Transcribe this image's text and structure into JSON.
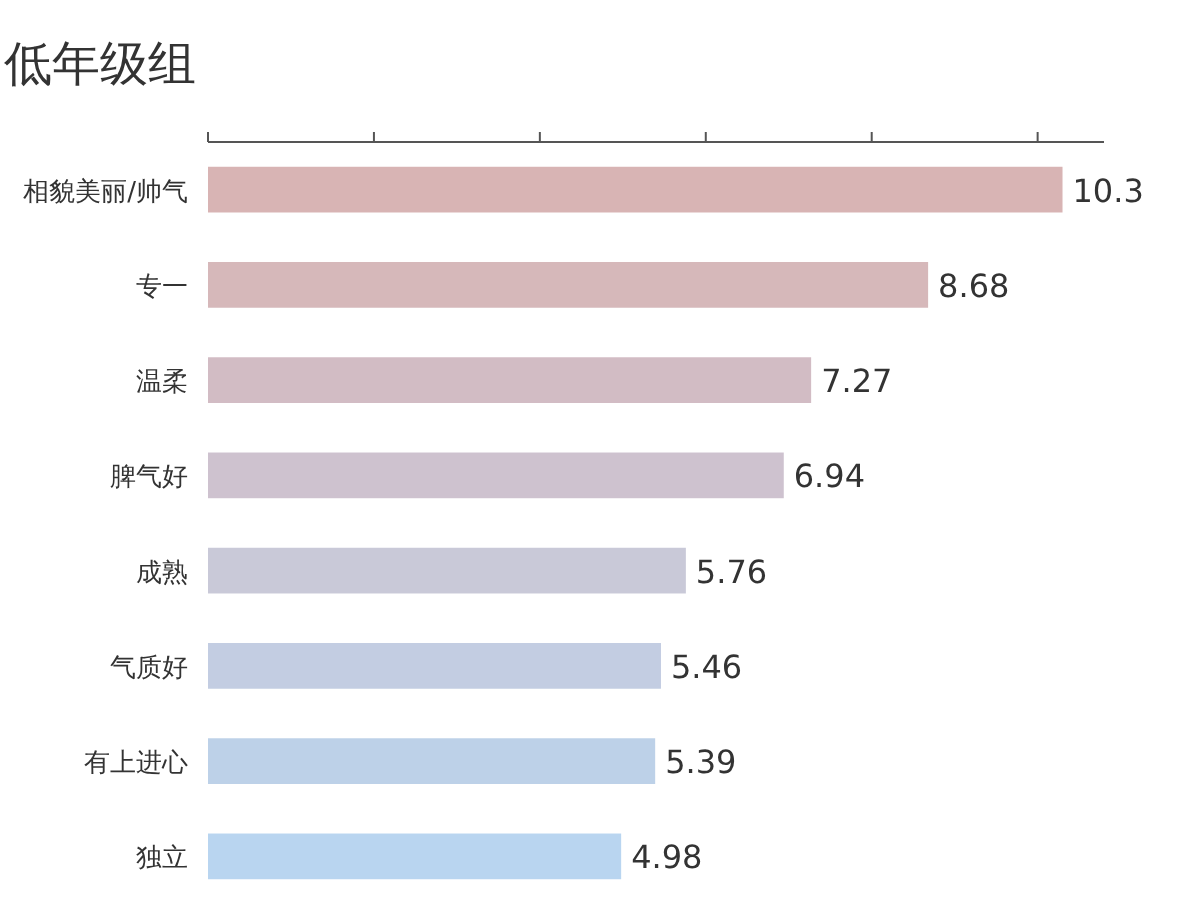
{
  "chart_data": {
    "type": "bar",
    "orientation": "horizontal",
    "title": "低年级组",
    "categories": [
      "相貌美丽/帅气",
      "专一",
      "温柔",
      "脾气好",
      "成熟",
      "气质好",
      "有上进心",
      "独立"
    ],
    "values": [
      10.3,
      8.68,
      7.27,
      6.94,
      5.76,
      5.46,
      5.39,
      4.98
    ],
    "colors": [
      "#d8b4b4",
      "#d6b8ba",
      "#d2bcc4",
      "#cec2cf",
      "#c9c9d8",
      "#c3cde2",
      "#bdd1e8",
      "#b9d5f0"
    ],
    "xlim": [
      0,
      10.8
    ],
    "xticks": [
      {
        "value": 0,
        "label": null
      },
      {
        "value": 2,
        "label": null
      },
      {
        "value": 4,
        "label": null
      },
      {
        "value": 6,
        "label": null
      },
      {
        "value": 8,
        "label": null
      },
      {
        "value": 10,
        "label": null
      }
    ],
    "tick_labels": "y",
    "data_labels": true
  }
}
